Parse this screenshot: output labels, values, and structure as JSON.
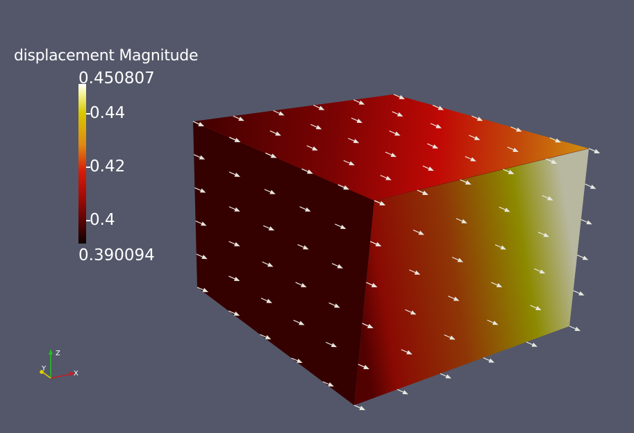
{
  "scalar_bar": {
    "title": "displacement Magnitude",
    "max_label": "0.450807",
    "min_label": "0.390094",
    "ticks": [
      {
        "label": "0.44",
        "value": 0.44
      },
      {
        "label": "0.42",
        "value": 0.42
      },
      {
        "label": "0.4",
        "value": 0.4
      }
    ],
    "range": [
      0.390094,
      0.450807
    ]
  },
  "axes": {
    "x_label": "X",
    "y_label": "Y",
    "z_label": "Z"
  },
  "colors": {
    "background": "#535769",
    "glyph": "#e8e8e0",
    "axis_x": "#c0202a",
    "axis_y": "#e0d000",
    "axis_z": "#20c020"
  }
}
